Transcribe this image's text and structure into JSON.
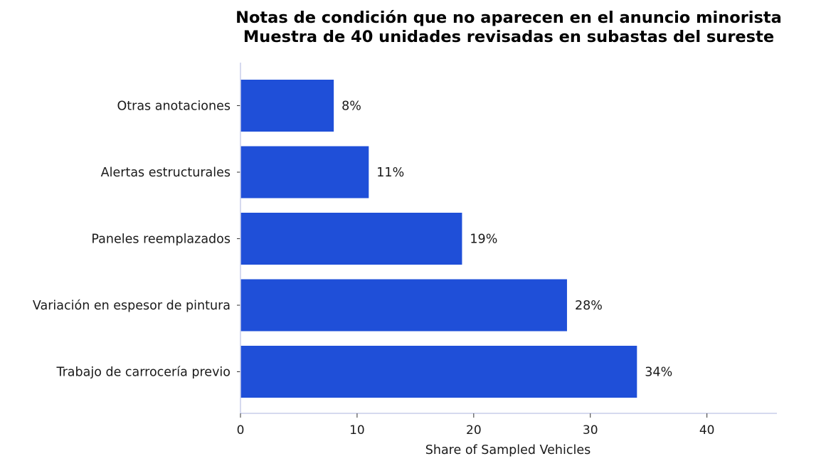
{
  "chart_data": {
    "type": "bar",
    "orientation": "horizontal",
    "title": "Notas de condición que no aparecen en el anuncio minorista",
    "subtitle": "Muestra de 40 unidades revisadas en subastas del sureste",
    "xlabel": "Share of Sampled Vehicles",
    "ylabel": "",
    "categories": [
      "Otras anotaciones",
      "Alertas estructurales",
      "Paneles reemplazados",
      "Variación en espesor de pintura",
      "Trabajo de carrocería previo"
    ],
    "values": [
      8,
      11,
      19,
      28,
      34
    ],
    "value_labels": [
      "8%",
      "11%",
      "19%",
      "28%",
      "34%"
    ],
    "xlim": [
      0,
      46
    ],
    "xticks": [
      "0",
      "10",
      "20",
      "30",
      "40"
    ],
    "xtick_values": [
      0,
      10,
      20,
      30,
      40
    ],
    "grid": false,
    "bar_color": "#1f4fd8",
    "axis_color": "#c8cdea"
  }
}
